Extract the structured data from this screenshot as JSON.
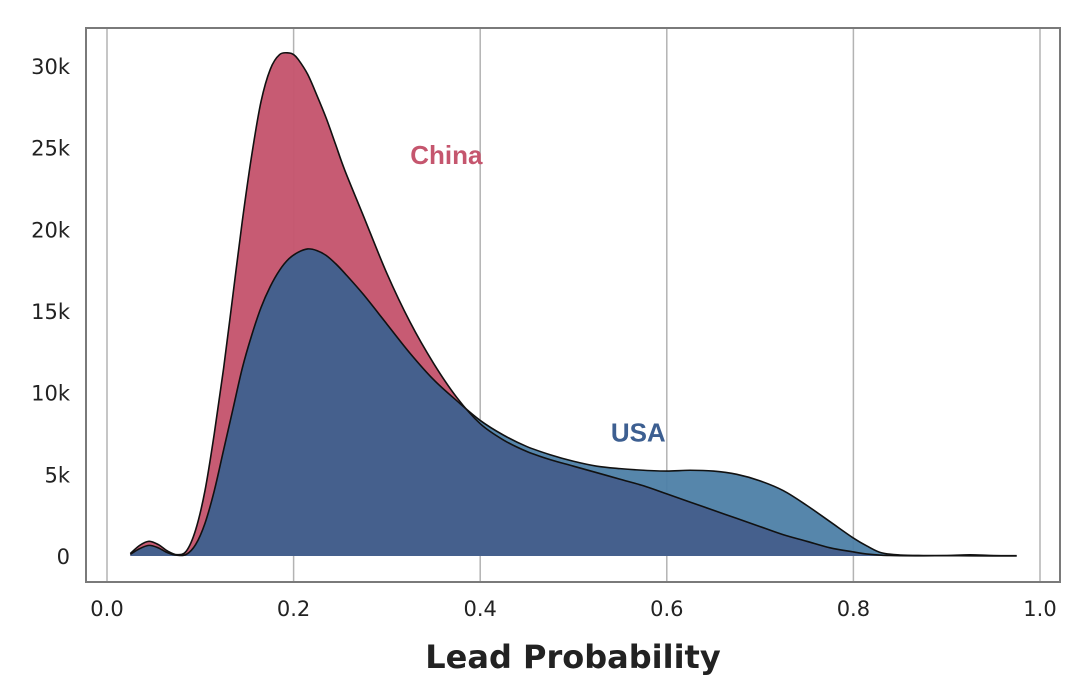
{
  "chart_data": {
    "type": "area",
    "xlabel": "Lead Probability",
    "ylabel": "",
    "xlim": [
      0.0,
      1.0
    ],
    "ylim": [
      0,
      32000
    ],
    "grid": {
      "x": true,
      "y": false
    },
    "x_ticks": [
      {
        "value": 0.0,
        "label": "0.0"
      },
      {
        "value": 0.2,
        "label": "0.2"
      },
      {
        "value": 0.4,
        "label": "0.4"
      },
      {
        "value": 0.6,
        "label": "0.6"
      },
      {
        "value": 0.8,
        "label": "0.8"
      },
      {
        "value": 1.0,
        "label": "1.0"
      }
    ],
    "y_ticks": [
      {
        "value": 0,
        "label": "0"
      },
      {
        "value": 5000,
        "label": "5k"
      },
      {
        "value": 10000,
        "label": "10k"
      },
      {
        "value": 15000,
        "label": "15k"
      },
      {
        "value": 20000,
        "label": "20k"
      },
      {
        "value": 25000,
        "label": "25k"
      },
      {
        "value": 30000,
        "label": "30k"
      }
    ],
    "series": [
      {
        "name": "USA",
        "color": "#4d7fa6",
        "label_at": {
          "x": 0.54,
          "y": 7000
        },
        "x": [
          0.025,
          0.035,
          0.045,
          0.055,
          0.065,
          0.075,
          0.085,
          0.095,
          0.105,
          0.115,
          0.125,
          0.135,
          0.145,
          0.155,
          0.165,
          0.175,
          0.185,
          0.195,
          0.205,
          0.215,
          0.225,
          0.235,
          0.245,
          0.255,
          0.275,
          0.3,
          0.325,
          0.35,
          0.375,
          0.4,
          0.425,
          0.45,
          0.475,
          0.5,
          0.525,
          0.55,
          0.575,
          0.6,
          0.625,
          0.65,
          0.675,
          0.7,
          0.725,
          0.75,
          0.775,
          0.8,
          0.815,
          0.83,
          0.85,
          0.875,
          0.9,
          0.925,
          0.95,
          0.975
        ],
        "values": [
          100,
          450,
          650,
          500,
          200,
          50,
          100,
          700,
          2000,
          4000,
          6500,
          9000,
          11500,
          13500,
          15200,
          16500,
          17500,
          18200,
          18600,
          18800,
          18700,
          18400,
          17900,
          17300,
          16000,
          14200,
          12400,
          10800,
          9500,
          8300,
          7400,
          6700,
          6200,
          5800,
          5500,
          5350,
          5250,
          5200,
          5250,
          5200,
          5000,
          4600,
          4000,
          3100,
          2100,
          1100,
          600,
          200,
          60,
          30,
          30,
          70,
          30,
          20
        ]
      },
      {
        "name": "China",
        "color": "#c5566e",
        "label_at": {
          "x": 0.325,
          "y": 24000
        },
        "x": [
          0.025,
          0.035,
          0.045,
          0.055,
          0.065,
          0.075,
          0.085,
          0.095,
          0.105,
          0.115,
          0.125,
          0.135,
          0.145,
          0.155,
          0.165,
          0.175,
          0.185,
          0.195,
          0.2,
          0.205,
          0.215,
          0.225,
          0.235,
          0.245,
          0.255,
          0.275,
          0.3,
          0.325,
          0.35,
          0.375,
          0.4,
          0.425,
          0.45,
          0.475,
          0.5,
          0.525,
          0.55,
          0.575,
          0.6,
          0.625,
          0.65,
          0.675,
          0.7,
          0.725,
          0.75,
          0.775,
          0.8,
          0.815,
          0.83,
          0.85,
          0.875,
          0.9,
          0.925,
          0.95,
          0.975
        ],
        "values": [
          150,
          650,
          900,
          700,
          300,
          80,
          300,
          1600,
          4000,
          7500,
          11500,
          16000,
          20500,
          24500,
          27800,
          29800,
          30700,
          30800,
          30700,
          30400,
          29500,
          28200,
          26800,
          25200,
          23600,
          20800,
          17300,
          14300,
          11800,
          9700,
          8100,
          7100,
          6400,
          5900,
          5500,
          5100,
          4700,
          4300,
          3800,
          3300,
          2800,
          2300,
          1800,
          1300,
          900,
          500,
          250,
          120,
          50,
          20,
          10,
          20,
          10,
          5,
          0
        ]
      }
    ]
  }
}
